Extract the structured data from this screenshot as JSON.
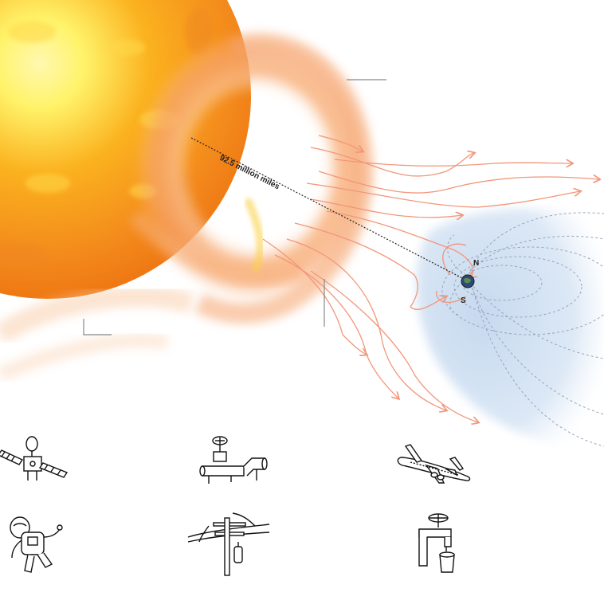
{
  "diagram": {
    "distance_label": "92.5 million miles",
    "pole_north": "N",
    "pole_south": "S",
    "colors": {
      "sun_core": "#fff36a",
      "sun_mid": "#fbb21f",
      "sun_edge": "#f07a16",
      "flare": "#f6a36c",
      "field_line": "#f2967a",
      "magnetosphere": "#c9dcf0",
      "dashed_field": "#98a4b8"
    }
  },
  "icons": [
    {
      "name": "satellite-icon"
    },
    {
      "name": "oil-pipeline-valve-icon"
    },
    {
      "name": "airplane-icon"
    },
    {
      "name": "astronaut-icon"
    },
    {
      "name": "power-line-transformer-icon"
    },
    {
      "name": "water-faucet-icon"
    }
  ]
}
